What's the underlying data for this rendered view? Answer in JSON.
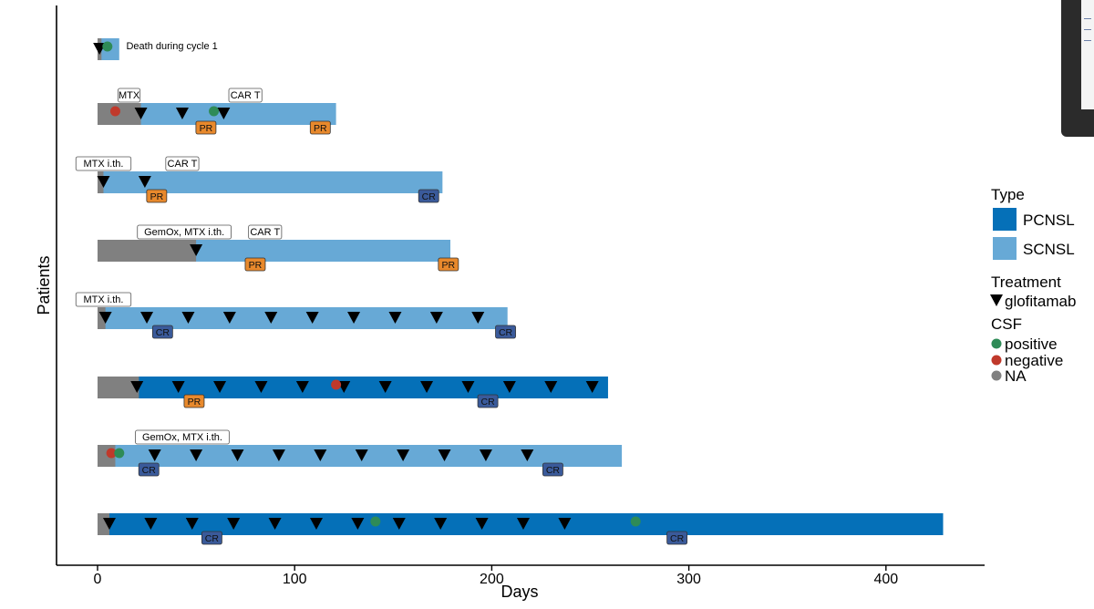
{
  "chart_data": {
    "type": "swimmer",
    "xlabel": "Days",
    "ylabel": "Patients",
    "xlim": [
      -20,
      450
    ],
    "xticks": [
      0,
      100,
      200,
      300,
      400
    ],
    "colors": {
      "PCNSL": "#0570b8",
      "SCNSL": "#67a9d6",
      "pre_treatment": "#808080",
      "csf_positive": "#2e8b57",
      "csf_negative": "#c0392b",
      "csf_na": "#808080",
      "PR": "#e8892c",
      "CR": "#3a5a9a"
    },
    "legend": {
      "type_title": "Type",
      "type_items": [
        "PCNSL",
        "SCNSL"
      ],
      "treatment_title": "Treatment",
      "treatment_item": "glofitamab",
      "csf_title": "CSF",
      "csf_items": [
        "positive",
        "negative",
        "NA"
      ]
    },
    "patients": [
      {
        "type": "SCNSL",
        "pre_end": 2,
        "end": 11,
        "glofitamab": [
          1
        ],
        "csf_positive": [
          5
        ],
        "csf_negative": [],
        "responses": [],
        "labels": [
          {
            "text": "Death during cycle 1",
            "day": 9,
            "plain": true
          }
        ]
      },
      {
        "type": "SCNSL",
        "pre_end": 22,
        "end": 121,
        "glofitamab": [
          22,
          43,
          64
        ],
        "csf_positive": [
          59
        ],
        "csf_negative": [
          9
        ],
        "responses": [
          {
            "text": "PR",
            "day": 55
          },
          {
            "text": "PR",
            "day": 113
          }
        ],
        "labels": [
          {
            "text": "MTX",
            "day": 16
          },
          {
            "text": "CAR T",
            "day": 75
          }
        ]
      },
      {
        "type": "SCNSL",
        "pre_end": 3,
        "end": 175,
        "glofitamab": [
          3,
          24
        ],
        "csf_positive": [],
        "csf_negative": [],
        "responses": [
          {
            "text": "PR",
            "day": 30
          },
          {
            "text": "CR",
            "day": 168
          }
        ],
        "labels": [
          {
            "text": "MTX i.th.",
            "day": 3
          },
          {
            "text": "CAR T",
            "day": 43
          }
        ]
      },
      {
        "type": "SCNSL",
        "pre_end": 50,
        "end": 179,
        "glofitamab": [
          50
        ],
        "csf_positive": [],
        "csf_negative": [],
        "responses": [
          {
            "text": "PR",
            "day": 80
          },
          {
            "text": "PR",
            "day": 178
          }
        ],
        "labels": [
          {
            "text": "GemOx, MTX i.th.",
            "day": 44
          },
          {
            "text": "CAR T",
            "day": 85
          }
        ]
      },
      {
        "type": "SCNSL",
        "pre_end": 4,
        "end": 208,
        "glofitamab": [
          4,
          25,
          46,
          67,
          88,
          109,
          130,
          151,
          172,
          193
        ],
        "csf_positive": [],
        "csf_negative": [],
        "responses": [
          {
            "text": "CR",
            "day": 33
          },
          {
            "text": "CR",
            "day": 207
          }
        ],
        "labels": [
          {
            "text": "MTX i.th.",
            "day": 3
          }
        ]
      },
      {
        "type": "PCNSL",
        "pre_end": 21,
        "end": 259,
        "glofitamab": [
          20,
          41,
          62,
          83,
          104,
          125,
          146,
          167,
          188,
          209,
          230,
          251
        ],
        "csf_positive": [],
        "csf_negative": [
          121
        ],
        "responses": [
          {
            "text": "PR",
            "day": 49
          },
          {
            "text": "CR",
            "day": 198
          }
        ],
        "labels": []
      },
      {
        "type": "SCNSL",
        "pre_end": 9,
        "end": 266,
        "glofitamab": [
          29,
          50,
          71,
          92,
          113,
          134,
          155,
          176,
          197,
          218
        ],
        "csf_positive": [
          11
        ],
        "csf_negative": [
          7
        ],
        "responses": [
          {
            "text": "CR",
            "day": 26
          },
          {
            "text": "CR",
            "day": 231
          }
        ],
        "labels": [
          {
            "text": "GemOx, MTX i.th.",
            "day": 43
          }
        ]
      },
      {
        "type": "PCNSL",
        "pre_end": 6,
        "end": 429,
        "glofitamab": [
          6,
          27,
          48,
          69,
          90,
          111,
          132,
          153,
          174,
          195,
          216,
          237
        ],
        "csf_positive": [
          141,
          273
        ],
        "csf_negative": [],
        "responses": [
          {
            "text": "CR",
            "day": 58
          },
          {
            "text": "CR",
            "day": 294
          }
        ],
        "labels": []
      }
    ]
  }
}
